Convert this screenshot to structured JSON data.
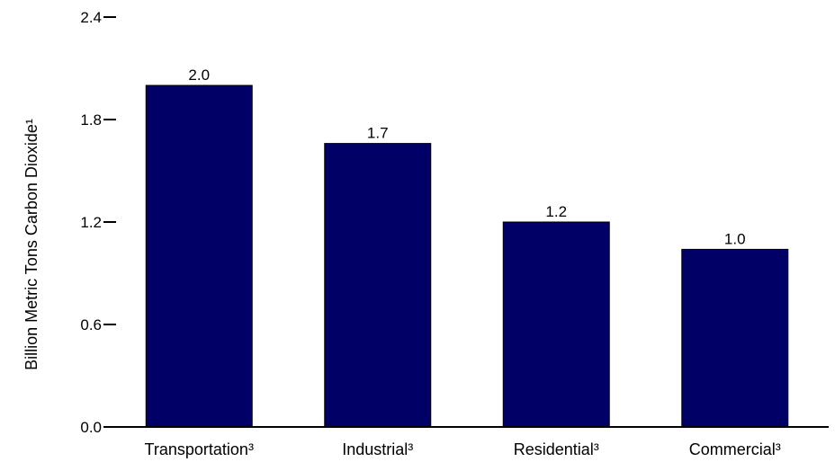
{
  "chart_data": {
    "type": "bar",
    "title": "",
    "xlabel": "",
    "ylabel": "Billion Metric Tons Carbon Dioxide¹",
    "categories": [
      "Transportation³",
      "Industrial³",
      "Residential³",
      "Commercial³"
    ],
    "values": [
      2.0,
      1.66,
      1.2,
      1.04
    ],
    "data_labels": [
      "2.0",
      "1.7",
      "1.2",
      "1.0"
    ],
    "yticks": [
      "0.0",
      "0.6",
      "1.2",
      "1.8",
      "2.4"
    ],
    "ylim": [
      0,
      2.4
    ],
    "grid": false,
    "legend": "none",
    "colors": {
      "bar": "#000066",
      "axis": "#000000"
    }
  }
}
